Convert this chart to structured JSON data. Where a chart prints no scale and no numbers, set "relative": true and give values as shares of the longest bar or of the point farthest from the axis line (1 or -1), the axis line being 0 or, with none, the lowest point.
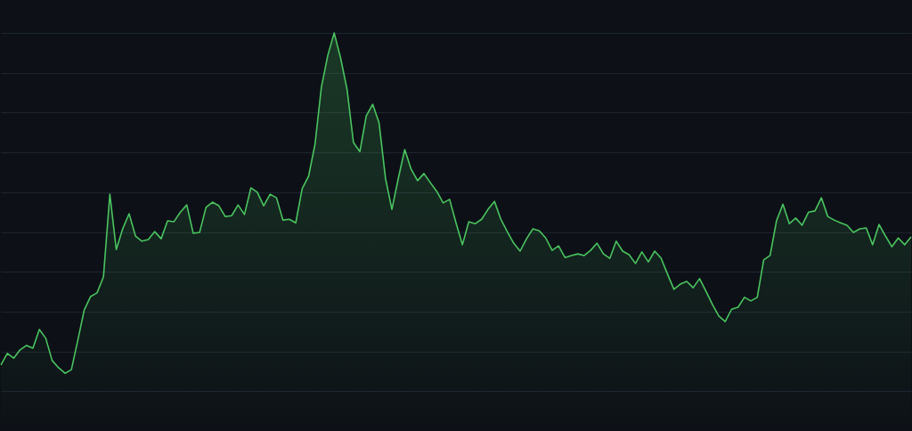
{
  "chart_data": {
    "type": "area",
    "relative": true,
    "grid": "y",
    "categories": [
      null,
      null,
      null,
      null,
      null,
      null,
      null,
      null,
      null,
      null,
      null,
      null,
      null,
      null,
      null,
      null,
      null,
      null,
      null,
      null,
      null,
      null,
      null,
      null,
      null,
      null,
      null,
      null,
      null,
      null,
      null,
      null,
      null,
      null,
      null,
      null,
      null,
      null,
      null,
      null,
      null,
      null,
      null,
      null,
      null,
      null,
      null,
      null,
      null,
      null,
      null,
      null,
      null,
      null,
      null,
      null,
      null,
      null,
      null,
      null,
      null,
      null,
      null,
      null,
      null,
      null,
      null,
      null,
      null,
      null,
      null,
      null,
      null,
      null,
      null,
      null,
      null,
      null,
      null,
      null,
      null,
      null,
      null,
      null,
      null,
      null,
      null,
      null,
      null,
      null,
      null,
      null,
      null,
      null,
      null,
      null,
      null,
      null,
      null,
      null,
      null,
      null,
      null,
      null,
      null,
      null,
      null,
      null,
      null,
      null,
      null,
      null,
      null,
      null,
      null,
      null,
      null,
      null,
      null,
      null,
      null,
      null,
      null,
      null,
      null,
      null,
      null,
      null,
      null,
      null,
      null,
      null,
      null,
      null,
      null,
      null,
      null,
      null,
      null,
      null,
      null,
      null,
      null
    ],
    "series": [
      {
        "color": "#4ac45f",
        "values": [
          0.166,
          0.195,
          0.183,
          0.204,
          0.215,
          0.208,
          0.255,
          0.233,
          0.177,
          0.159,
          0.145,
          0.154,
          0.228,
          0.304,
          0.338,
          0.347,
          0.387,
          0.595,
          0.456,
          0.508,
          0.546,
          0.49,
          0.477,
          0.481,
          0.501,
          0.483,
          0.528,
          0.526,
          0.55,
          0.568,
          0.497,
          0.499,
          0.562,
          0.575,
          0.566,
          0.539,
          0.541,
          0.568,
          0.544,
          0.611,
          0.6,
          0.566,
          0.595,
          0.586,
          0.53,
          0.532,
          0.523,
          0.609,
          0.64,
          0.72,
          0.864,
          0.944,
          1,
          0.937,
          0.859,
          0.725,
          0.702,
          0.792,
          0.821,
          0.774,
          0.635,
          0.557,
          0.635,
          0.707,
          0.658,
          0.629,
          0.647,
          0.624,
          0.602,
          0.573,
          0.582,
          0.523,
          0.468,
          0.526,
          0.521,
          0.532,
          0.557,
          0.577,
          0.532,
          0.501,
          0.472,
          0.452,
          0.483,
          0.508,
          0.503,
          0.485,
          0.454,
          0.465,
          0.436,
          0.441,
          0.445,
          0.441,
          0.454,
          0.472,
          0.445,
          0.434,
          0.477,
          0.452,
          0.443,
          0.421,
          0.45,
          0.425,
          0.452,
          0.434,
          0.394,
          0.356,
          0.369,
          0.376,
          0.36,
          0.383,
          0.351,
          0.318,
          0.289,
          0.275,
          0.306,
          0.311,
          0.336,
          0.327,
          0.336,
          0.43,
          0.441,
          0.528,
          0.57,
          0.521,
          0.535,
          0.517,
          0.55,
          0.553,
          0.586,
          0.539,
          0.53,
          0.523,
          0.517,
          0.499,
          0.508,
          0.51,
          0.468,
          0.519,
          0.49,
          0.463,
          0.485,
          0.468,
          0.488
        ]
      }
    ]
  }
}
